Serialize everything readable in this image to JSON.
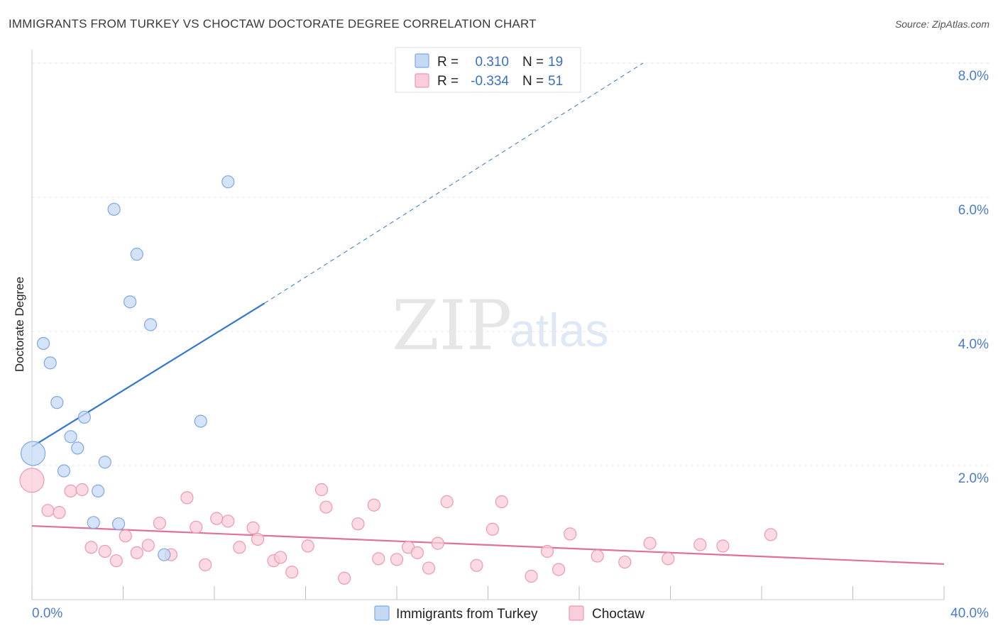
{
  "title": "IMMIGRANTS FROM TURKEY VS CHOCTAW DOCTORATE DEGREE CORRELATION CHART",
  "source": "Source: ZipAtlas.com",
  "watermark": {
    "zip": "ZIP",
    "atlas": "atlas"
  },
  "colors": {
    "blue_fill": "#c5d9f5",
    "blue_stroke": "#7ea8e3",
    "blue_line": "#3377cc",
    "pink_fill": "#f9cdd9",
    "pink_stroke": "#ec99b2",
    "pink_line": "#e0709a",
    "tick_text": "#4a7cc9",
    "grid": "#e4e4e4"
  },
  "legend": {
    "rows": [
      {
        "r_label": "R =",
        "r_value": "0.310",
        "n_label": "N =",
        "n_value": "19"
      },
      {
        "r_label": "R =",
        "r_value": "-0.334",
        "n_label": "N =",
        "n_value": "51"
      }
    ]
  },
  "bottom_legend": [
    "Immigrants from Turkey",
    "Choctaw"
  ],
  "chart_data": {
    "type": "scatter",
    "title": "IMMIGRANTS FROM TURKEY VS CHOCTAW DOCTORATE DEGREE CORRELATION CHART",
    "xlabel": "",
    "ylabel": "Doctorate Degree",
    "xlim": [
      0,
      40
    ],
    "ylim": [
      0,
      8.2
    ],
    "x_tick_labels": [
      "0.0%",
      "40.0%"
    ],
    "y_ticks": [
      2,
      4,
      6,
      8
    ],
    "y_tick_labels": [
      "2.0%",
      "4.0%",
      "6.0%",
      "8.0%"
    ],
    "grid": true,
    "legend_position": "top-center",
    "series": [
      {
        "name": "Immigrants from Turkey",
        "r": 0.31,
        "n": 19,
        "points": [
          {
            "x": 0.05,
            "y": 2.18,
            "big": true
          },
          {
            "x": 0.5,
            "y": 3.82
          },
          {
            "x": 0.8,
            "y": 3.53
          },
          {
            "x": 1.1,
            "y": 2.94
          },
          {
            "x": 1.7,
            "y": 2.43
          },
          {
            "x": 1.4,
            "y": 1.92
          },
          {
            "x": 2.0,
            "y": 2.26
          },
          {
            "x": 2.3,
            "y": 2.72
          },
          {
            "x": 2.9,
            "y": 1.62
          },
          {
            "x": 3.2,
            "y": 2.05
          },
          {
            "x": 2.7,
            "y": 1.15
          },
          {
            "x": 3.8,
            "y": 1.13
          },
          {
            "x": 3.6,
            "y": 5.82
          },
          {
            "x": 4.6,
            "y": 5.15
          },
          {
            "x": 4.3,
            "y": 4.44
          },
          {
            "x": 5.2,
            "y": 4.1
          },
          {
            "x": 5.8,
            "y": 0.67
          },
          {
            "x": 7.4,
            "y": 2.66
          },
          {
            "x": 8.6,
            "y": 6.23
          }
        ],
        "trend": {
          "x0": 0,
          "y0": 2.28,
          "x_solid_end": 10.2,
          "y_solid_end": 4.42,
          "x_dash_end": 26.8,
          "y_dash_end": 8.0
        }
      },
      {
        "name": "Choctaw",
        "r": -0.334,
        "n": 51,
        "points": [
          {
            "x": 0.0,
            "y": 1.78,
            "big": true
          },
          {
            "x": 0.7,
            "y": 1.33
          },
          {
            "x": 1.2,
            "y": 1.3
          },
          {
            "x": 1.7,
            "y": 1.62
          },
          {
            "x": 2.2,
            "y": 1.64
          },
          {
            "x": 2.6,
            "y": 0.78
          },
          {
            "x": 3.2,
            "y": 0.72
          },
          {
            "x": 3.7,
            "y": 0.58
          },
          {
            "x": 4.1,
            "y": 0.95
          },
          {
            "x": 4.6,
            "y": 0.7
          },
          {
            "x": 5.1,
            "y": 0.81
          },
          {
            "x": 5.6,
            "y": 1.14
          },
          {
            "x": 6.1,
            "y": 0.67
          },
          {
            "x": 6.8,
            "y": 1.52
          },
          {
            "x": 7.2,
            "y": 1.08
          },
          {
            "x": 7.6,
            "y": 0.52
          },
          {
            "x": 8.1,
            "y": 1.21
          },
          {
            "x": 8.6,
            "y": 1.17
          },
          {
            "x": 9.1,
            "y": 0.78
          },
          {
            "x": 9.7,
            "y": 1.07
          },
          {
            "x": 9.9,
            "y": 0.9
          },
          {
            "x": 10.6,
            "y": 0.58
          },
          {
            "x": 10.9,
            "y": 0.63
          },
          {
            "x": 11.4,
            "y": 0.41
          },
          {
            "x": 12.1,
            "y": 0.8
          },
          {
            "x": 12.7,
            "y": 1.64
          },
          {
            "x": 12.9,
            "y": 1.38
          },
          {
            "x": 13.7,
            "y": 0.32
          },
          {
            "x": 14.3,
            "y": 1.13
          },
          {
            "x": 15.0,
            "y": 1.41
          },
          {
            "x": 15.2,
            "y": 0.61
          },
          {
            "x": 16.0,
            "y": 0.6
          },
          {
            "x": 16.5,
            "y": 0.78
          },
          {
            "x": 16.9,
            "y": 0.7
          },
          {
            "x": 17.4,
            "y": 0.47
          },
          {
            "x": 17.8,
            "y": 0.84
          },
          {
            "x": 18.2,
            "y": 1.46
          },
          {
            "x": 19.5,
            "y": 0.51
          },
          {
            "x": 20.2,
            "y": 1.05
          },
          {
            "x": 20.6,
            "y": 1.46
          },
          {
            "x": 21.9,
            "y": 0.35
          },
          {
            "x": 22.6,
            "y": 0.72
          },
          {
            "x": 23.1,
            "y": 0.45
          },
          {
            "x": 23.6,
            "y": 0.98
          },
          {
            "x": 24.8,
            "y": 0.65
          },
          {
            "x": 26.0,
            "y": 0.56
          },
          {
            "x": 27.1,
            "y": 0.84
          },
          {
            "x": 27.9,
            "y": 0.61
          },
          {
            "x": 29.3,
            "y": 0.82
          },
          {
            "x": 30.3,
            "y": 0.8
          },
          {
            "x": 32.4,
            "y": 0.97
          }
        ],
        "trend": {
          "x0": 0,
          "y0": 1.1,
          "x1": 40,
          "y1": 0.53
        }
      }
    ]
  }
}
